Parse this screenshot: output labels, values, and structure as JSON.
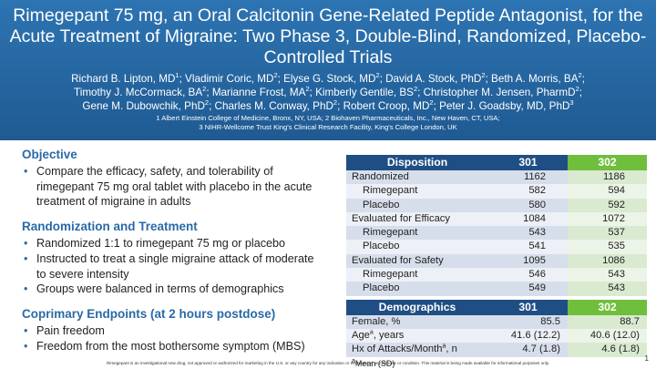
{
  "title": "Rimegepant 75 mg, an Oral Calcitonin Gene-Related Peptide Antagonist, for the Acute Treatment of Migraine: Two Phase 3, Double-Blind, Randomized, Placebo-Controlled Trials",
  "authors_line1": "Richard B. Lipton, MD1; Vladimir Coric, MD2; Elyse G. Stock, MD2; David A. Stock, PhD2; Beth A. Morris, BA2;",
  "authors_line2": "Timothy J. McCormack, BA2; Marianne Frost, MA2; Kimberly Gentile, BS2; Christopher M. Jensen, PharmD2;",
  "authors_line3": "Gene M. Dubowchik, PhD2; Charles M. Conway, PhD2; Robert Croop, MD2; Peter J. Goadsby, MD, PhD3",
  "affiliation_line1": "1 Albert Einstein College of Medicine, Bronx, NY, USA; 2 Biohaven Pharmaceuticals, Inc., New Haven, CT, USA;",
  "affiliation_line2": "3 NIHR-Wellcome Trust King's Clinical Research Facility, King's College London, UK",
  "objective": {
    "heading": "Objective",
    "bullets": [
      "Compare the efficacy, safety, and tolerability of rimegepant 75 mg oral tablet with placebo in the acute treatment of migraine in adults"
    ]
  },
  "randomization": {
    "heading": "Randomization and Treatment",
    "bullets": [
      "Randomized 1:1 to rimegepant 75 mg or placebo",
      "Instructed to treat a single migraine attack of moderate to severe intensity",
      "Groups were balanced in terms of demographics"
    ]
  },
  "endpoints": {
    "heading": "Coprimary Endpoints (at 2 hours postdose)",
    "bullets": [
      "Pain freedom",
      "Freedom from the most bothersome symptom (MBS)"
    ]
  },
  "disposition_table": {
    "header": [
      "Disposition",
      "301",
      "302"
    ],
    "rows": [
      [
        "Randomized",
        "1162",
        "1186"
      ],
      [
        "Rimegepant",
        "582",
        "594"
      ],
      [
        "Placebo",
        "580",
        "592"
      ],
      [
        "Evaluated for Efficacy",
        "1084",
        "1072"
      ],
      [
        "Rimegepant",
        "543",
        "537"
      ],
      [
        "Placebo",
        "541",
        "535"
      ],
      [
        "Evaluated for Safety",
        "1095",
        "1086"
      ],
      [
        "Rimegepant",
        "546",
        "543"
      ],
      [
        "Placebo",
        "549",
        "543"
      ]
    ]
  },
  "demographics_table": {
    "header": [
      "Demographics",
      "301",
      "302"
    ],
    "rows": [
      [
        "Female, %",
        "85.5",
        "88.7"
      ],
      [
        "Age",
        "41.6 (12.2)",
        "40.6 (12.0)"
      ],
      [
        "Hx of Attacks/Month",
        "4.7 (1.8)",
        "4.6 (1.8)"
      ]
    ],
    "row2_suffix": ", years",
    "row3_suffix": ", n",
    "sup_mark": "a",
    "footnote": "Mean (SD)"
  },
  "disclaimer": "Rimegepant is an investigational new drug, not approved or authorized for marketing in the U.S. or any country for any indication or treatment of any disease or condition. This material is being made available for informational purposes only.",
  "page_number": "1",
  "colors": {
    "header_bg": "#2d74b2",
    "accent": "#2a6aa8",
    "col_302": "#6fbf3d",
    "table_header": "#1f4e84"
  }
}
